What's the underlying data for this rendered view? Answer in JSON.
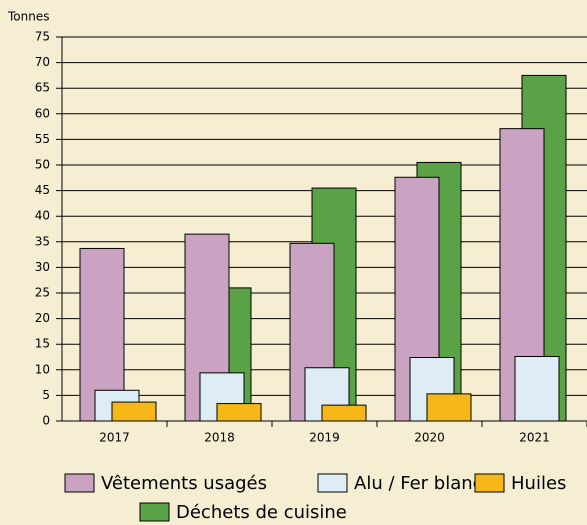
{
  "chart_data": {
    "type": "bar",
    "y_label": "Tonnes",
    "categories": [
      "2017",
      "2018",
      "2019",
      "2020",
      "2021"
    ],
    "series": [
      {
        "name": "Déchets de cuisine",
        "color": "#5aa246",
        "values": [
          null,
          26,
          45.5,
          50.5,
          67.5
        ]
      },
      {
        "name": "Vêtements usagés",
        "color": "#c9a3c1",
        "values": [
          33.7,
          36.5,
          34.7,
          47.6,
          57.1
        ]
      },
      {
        "name": "Alu / Fer blanc",
        "color": "#deedf5",
        "values": [
          6,
          9.4,
          10.4,
          12.4,
          12.6
        ]
      },
      {
        "name": "Huiles",
        "color": "#f6b817",
        "values": [
          3.7,
          3.4,
          3.1,
          5.3,
          null
        ]
      }
    ],
    "ylim": [
      0,
      75
    ],
    "yticks": [
      0,
      5,
      10,
      15,
      20,
      25,
      30,
      35,
      40,
      45,
      50,
      55,
      60,
      65,
      70,
      75
    ],
    "grid": true
  }
}
